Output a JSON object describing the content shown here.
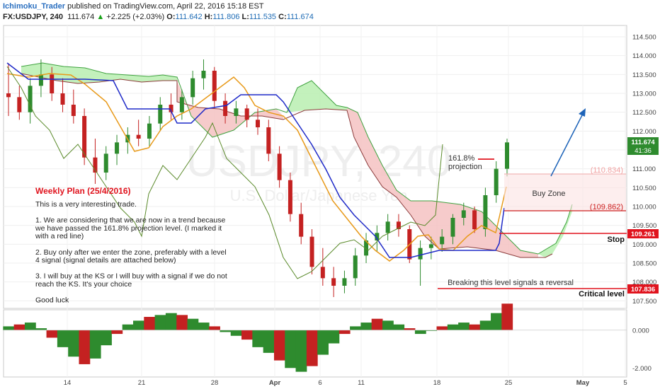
{
  "header": {
    "author": "Ichimoku_Trader",
    "published_text": " published on TradingView.com, April 22, 2016 15:18 EST",
    "symbol": "FX:USDJPY, 240",
    "last": "111.674",
    "change_arrow": "▲",
    "change": "+2.225 (+2.03%)",
    "open_label": "O:",
    "open": "111.642",
    "high_label": "H:",
    "high": "111.806",
    "low_label": "L:",
    "low": "111.535",
    "close_label": "C:",
    "close": "111.674"
  },
  "watermark": {
    "line1": "USDJPY, 240",
    "line2": "U.S. Dollar/Japanese Yen"
  },
  "price_axis": {
    "ticks": [
      "114.500",
      "114.000",
      "113.500",
      "113.000",
      "112.500",
      "112.000",
      "111.500",
      "111.000",
      "110.500",
      "110.000",
      "109.500",
      "109.000",
      "108.500",
      "108.000",
      "107.500"
    ],
    "last_price": "111.674",
    "countdown": "41:36",
    "stop_price": "109.261",
    "critical_price": "107.836"
  },
  "indicator_axis": {
    "ticks": [
      "0.000",
      "-2.000"
    ]
  },
  "time_axis": {
    "ticks": [
      "14",
      "21",
      "28",
      "Apr",
      "6",
      "11",
      "18",
      "25",
      "May",
      "5"
    ]
  },
  "annotations": {
    "plan_title": "Weekly Plan (25/4/2016)",
    "plan_lines": [
      "This is a very interesting trade.",
      "",
      "1. We are considering that we are now in a trend because",
      "we have passed the 161.8% projection level. (I marked it",
      "with a red line)",
      "",
      "2. Buy only after we enter the zone, preferably with a level",
      "4 signal (signal details are attached below)",
      "",
      "3. I will buy at the KS or I will buy with a signal if we do not",
      "reach the KS. It's your choice",
      "",
      "Good luck"
    ],
    "projection_line1": "161.8%",
    "projection_line2": "projection",
    "buy_zone": "Buy Zone",
    "zone_top": "(110.834)",
    "zone_bottom": "(109.862)",
    "stop": "Stop",
    "reversal": "Breaking this level signals a reversal",
    "critical": "Critical level"
  },
  "colors": {
    "up": "#2e8b2e",
    "down": "#c42121",
    "tenkan": "#e89a1a",
    "kijun": "#1f2ac8",
    "chikou": "#5a8a2a",
    "kumo_bull": "#b9efb0",
    "kumo_bear": "#f5c2c2",
    "annotation_red": "#e0141e",
    "arrow_blue": "#1d63b8"
  },
  "chart_data": {
    "type": "candlestick",
    "price_range": [
      107.3,
      114.8
    ],
    "indicator_range": [
      -2.4,
      1.0
    ],
    "ohlc": [
      [
        113.0,
        113.8,
        112.4,
        112.9
      ],
      [
        112.9,
        113.2,
        112.3,
        112.5
      ],
      [
        112.5,
        113.4,
        112.2,
        113.2
      ],
      [
        113.2,
        113.9,
        112.9,
        113.5
      ],
      [
        113.5,
        113.7,
        112.8,
        113.0
      ],
      [
        113.0,
        113.4,
        112.5,
        112.7
      ],
      [
        112.7,
        113.1,
        112.2,
        112.4
      ],
      [
        112.4,
        112.6,
        111.1,
        111.3
      ],
      [
        111.3,
        111.8,
        110.6,
        110.9
      ],
      [
        110.9,
        111.6,
        110.7,
        111.4
      ],
      [
        111.4,
        111.9,
        111.1,
        111.7
      ],
      [
        111.7,
        112.1,
        111.4,
        111.9
      ],
      [
        111.9,
        112.3,
        111.6,
        111.8
      ],
      [
        111.8,
        112.4,
        111.6,
        112.2
      ],
      [
        112.2,
        112.9,
        112.0,
        112.7
      ],
      [
        112.7,
        113.0,
        112.3,
        112.5
      ],
      [
        112.5,
        113.1,
        112.3,
        112.9
      ],
      [
        112.9,
        113.6,
        112.7,
        113.4
      ],
      [
        113.4,
        113.9,
        113.1,
        113.6
      ],
      [
        113.6,
        113.7,
        112.6,
        112.8
      ],
      [
        112.8,
        113.0,
        112.2,
        112.4
      ],
      [
        112.4,
        112.8,
        112.2,
        112.6
      ],
      [
        112.6,
        112.7,
        112.1,
        112.3
      ],
      [
        112.3,
        112.6,
        111.9,
        112.1
      ],
      [
        112.1,
        112.3,
        111.2,
        111.4
      ],
      [
        111.4,
        111.6,
        110.5,
        110.7
      ],
      [
        110.7,
        110.9,
        109.6,
        109.8
      ],
      [
        109.8,
        110.1,
        109.0,
        109.2
      ],
      [
        109.2,
        109.4,
        108.2,
        108.4
      ],
      [
        108.4,
        108.9,
        107.9,
        108.1
      ],
      [
        108.1,
        108.4,
        107.6,
        107.9
      ],
      [
        107.9,
        108.3,
        107.7,
        108.1
      ],
      [
        108.1,
        108.9,
        107.9,
        108.7
      ],
      [
        108.7,
        109.3,
        108.5,
        109.1
      ],
      [
        109.1,
        109.5,
        108.8,
        109.3
      ],
      [
        109.3,
        109.8,
        109.1,
        109.6
      ],
      [
        109.6,
        109.8,
        109.2,
        109.4
      ],
      [
        109.4,
        109.5,
        108.5,
        108.6
      ],
      [
        108.6,
        109.1,
        107.9,
        108.9
      ],
      [
        108.9,
        109.2,
        108.6,
        109.0
      ],
      [
        109.0,
        109.4,
        108.8,
        109.2
      ],
      [
        109.2,
        109.8,
        109.0,
        109.7
      ],
      [
        109.7,
        110.1,
        109.5,
        109.9
      ],
      [
        109.9,
        110.0,
        109.3,
        109.4
      ],
      [
        109.4,
        110.5,
        109.2,
        110.3
      ],
      [
        110.3,
        111.2,
        110.1,
        111.0
      ],
      [
        111.0,
        111.8,
        110.8,
        111.7
      ]
    ],
    "zone": [
      109.862,
      110.834
    ],
    "stop_level": 109.261,
    "critical_level": 107.836,
    "projection_level": 111.2,
    "histogram": [
      0.2,
      0.3,
      0.4,
      0.1,
      -0.4,
      -0.9,
      -1.4,
      -1.8,
      -1.5,
      -0.8,
      -0.2,
      0.3,
      0.5,
      0.7,
      0.8,
      0.9,
      0.8,
      0.6,
      0.4,
      0.2,
      -0.1,
      -0.3,
      -0.5,
      -0.9,
      -1.2,
      -1.6,
      -2.0,
      -2.2,
      -1.9,
      -1.3,
      -0.7,
      -0.2,
      0.2,
      0.4,
      0.6,
      0.5,
      0.3,
      0.1,
      -0.2,
      0.0,
      0.2,
      0.3,
      0.4,
      0.3,
      0.5,
      0.9,
      1.4
    ]
  }
}
